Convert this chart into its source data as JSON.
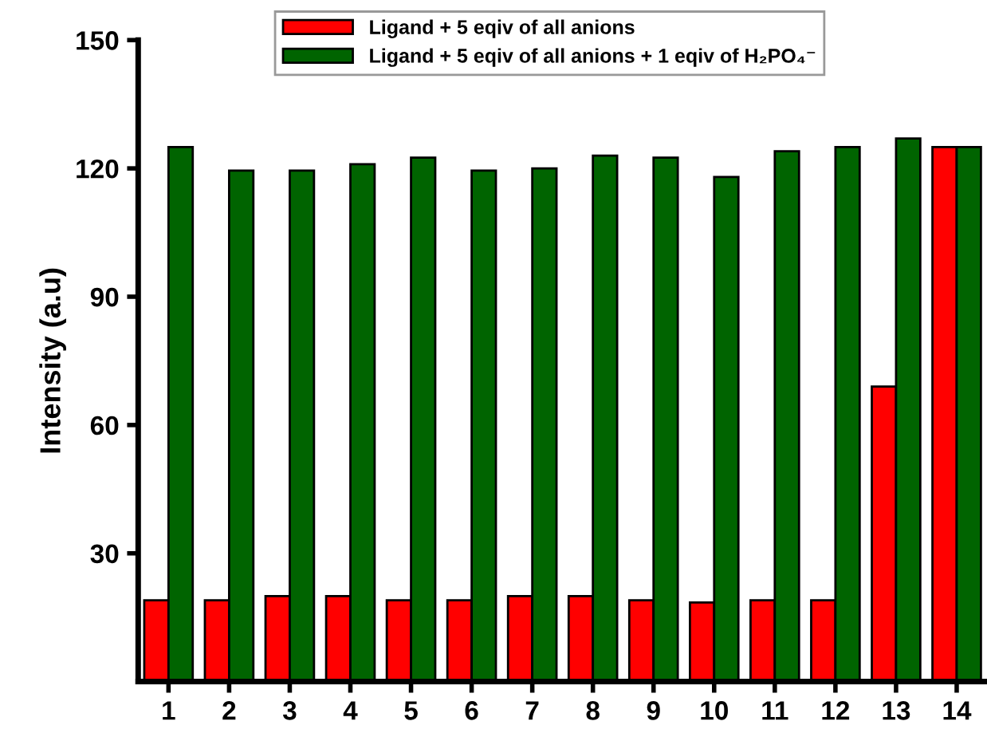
{
  "chart_data": {
    "type": "bar",
    "ylabel": "Intensity (a.u)",
    "categories": [
      "1",
      "2",
      "3",
      "4",
      "5",
      "6",
      "7",
      "8",
      "9",
      "10",
      "11",
      "12",
      "13",
      "14"
    ],
    "series": [
      {
        "name": "Ligand + 5 eqiv of all anions",
        "color": "#ff0000",
        "values": [
          19,
          19,
          20,
          20,
          19,
          19,
          20,
          20,
          19,
          18.5,
          19,
          19,
          69,
          125
        ]
      },
      {
        "name": "Ligand + 5 eqiv of all anions + 1 eqiv of H₂PO₄⁻",
        "color": "#006400",
        "values": [
          125,
          119.5,
          119.5,
          121,
          122.5,
          119.5,
          120,
          123,
          122.5,
          118,
          124,
          125,
          127,
          125
        ]
      }
    ],
    "ylim": [
      0,
      150
    ],
    "yticks": [
      30,
      60,
      90,
      120,
      150
    ],
    "grid": false,
    "legend": "top right"
  }
}
